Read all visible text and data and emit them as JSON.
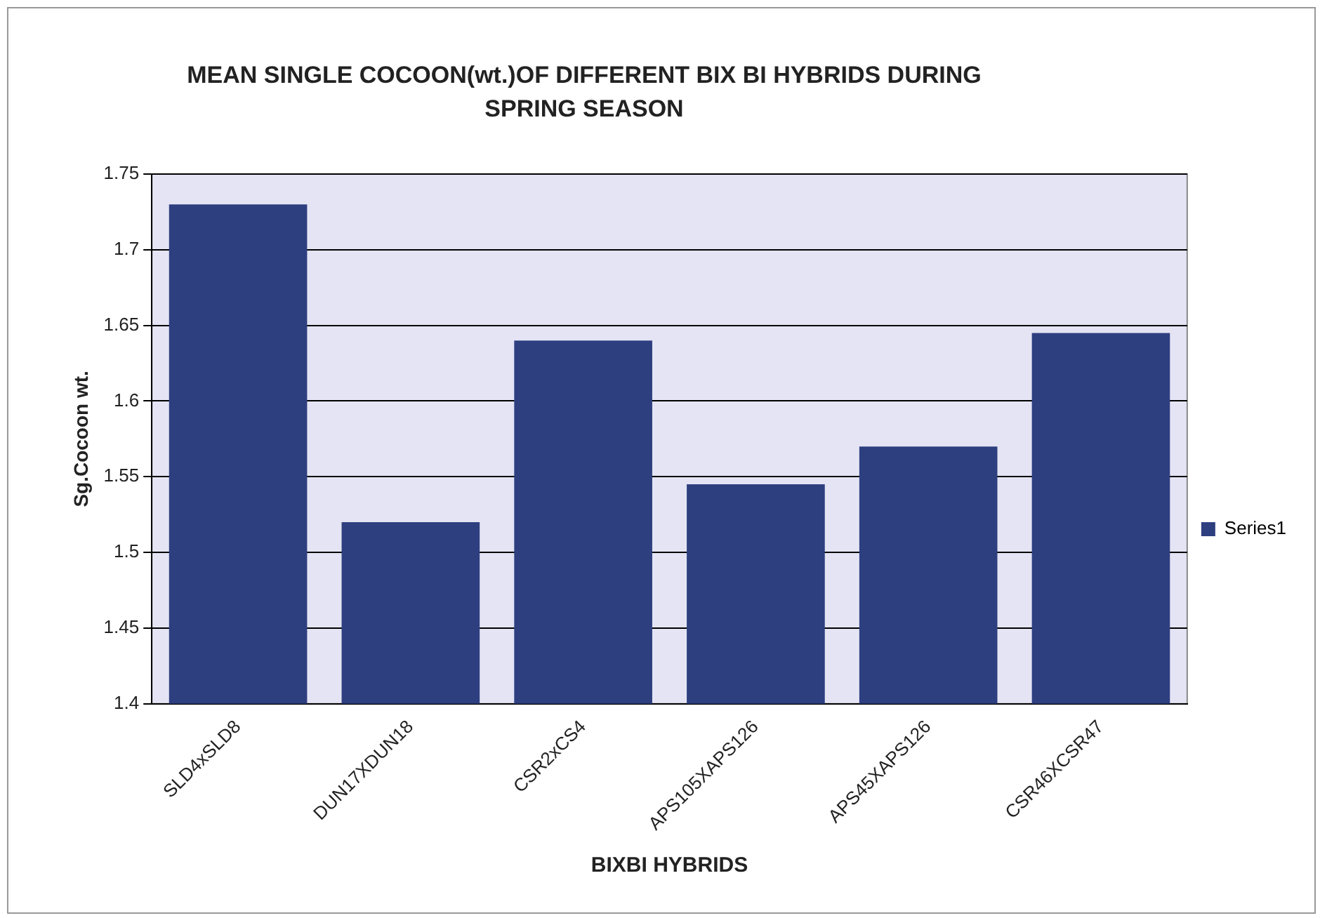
{
  "chart_data": {
    "type": "bar",
    "title": "MEAN SINGLE COCOON(wt.)OF DIFFERENT BIX BI HYBRIDS DURING SPRING SEASON",
    "xlabel": "BIXBI HYBRIDS",
    "ylabel": "Sg.Cocoon wt.",
    "categories": [
      "SLD4xSLD8",
      "DUN17XDUN18",
      "CSR2xCS4",
      "APS105XAPS126",
      "APS45XAPS126",
      "CSR46XCSR47"
    ],
    "series": [
      {
        "name": "Series1",
        "color": "#2e3f80",
        "values": [
          1.73,
          1.52,
          1.64,
          1.545,
          1.57,
          1.645
        ]
      }
    ],
    "ylim": [
      1.4,
      1.75
    ],
    "yticks": [
      1.4,
      1.45,
      1.5,
      1.55,
      1.6,
      1.65,
      1.7,
      1.75
    ],
    "grid": "y",
    "legend": "right"
  }
}
